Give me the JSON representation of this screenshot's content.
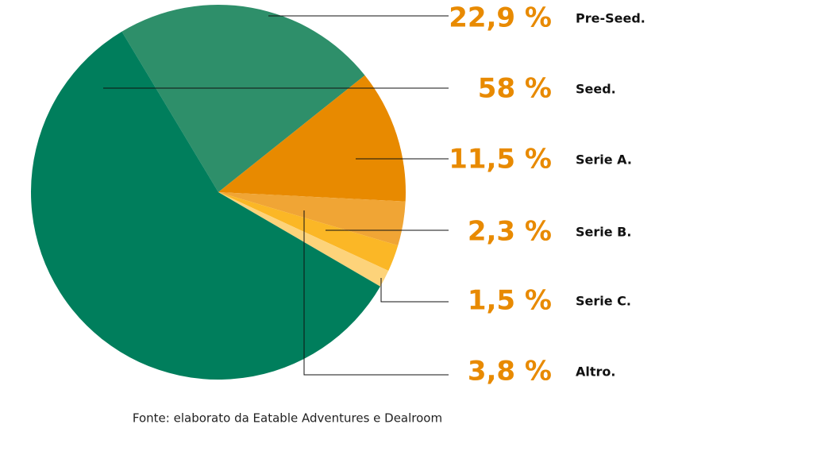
{
  "chart_data": {
    "type": "pie",
    "categories": [
      "Pre-Seed.",
      "Serie A.",
      "Altro.",
      "Serie B.",
      "Serie C.",
      "Seed."
    ],
    "values": [
      22.9,
      11.5,
      3.8,
      2.3,
      1.5,
      58
    ],
    "value_labels": [
      "22,9 %",
      "11,5 %",
      "3,8 %",
      "2,3 %",
      "1,5 %",
      "58 %"
    ],
    "colors": [
      "#2e8f6a",
      "#e88a00",
      "#f0a535",
      "#fbb726",
      "#fdd37a",
      "#007e5c"
    ],
    "source": "Fonte: elaborato da Eatable Adventures e Dealroom"
  }
}
